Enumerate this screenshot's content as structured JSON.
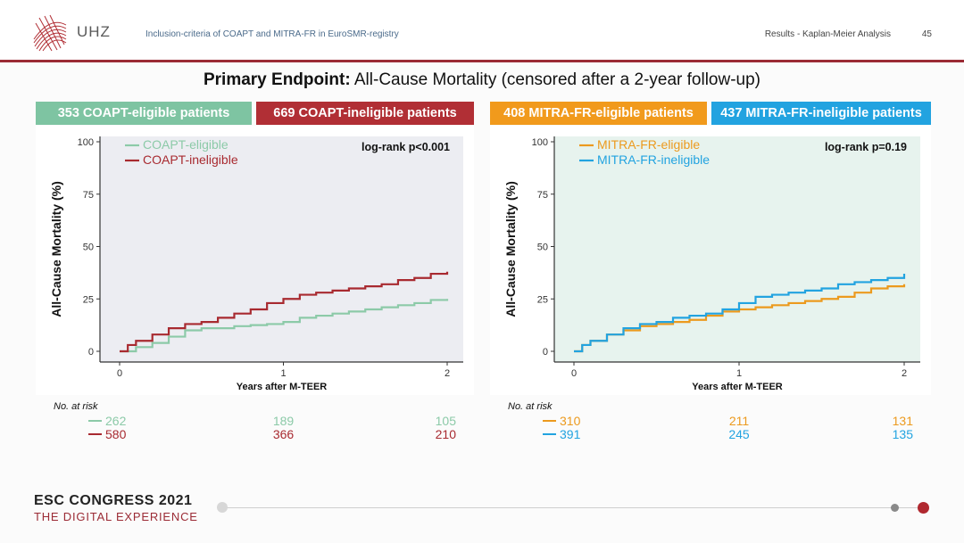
{
  "header": {
    "logo_text": "UHZ",
    "subtitle": "Inclusion-criteria of COAPT and MITRA-FR in EuroSMR-registry",
    "section": "Results - Kaplan-Meier Analysis",
    "page_number": "45"
  },
  "title": {
    "bold": "Primary Endpoint:",
    "rest": " All-Cause Mortality (censored after a 2-year follow-up)"
  },
  "badges": [
    {
      "label": "353 COAPT-eligible patients",
      "color": "#7ec4a2"
    },
    {
      "label": "669 COAPT-ineligible patients",
      "color": "#b12f35"
    },
    {
      "label": "408 MITRA-FR-eligible patients",
      "color": "#f19a1c"
    },
    {
      "label": "437 MITRA-FR-ineligible patients",
      "color": "#22a3e0"
    }
  ],
  "chart_data": [
    {
      "type": "line",
      "plot_bg": "#ecedf2",
      "xlabel": "Years after M-TEER",
      "ylabel": "All-Cause Mortality (%)",
      "xlim": [
        0,
        2
      ],
      "ylim": [
        0,
        100
      ],
      "xticks": [
        "0",
        "1",
        "2"
      ],
      "yticks": [
        "0",
        "25",
        "50",
        "75",
        "100"
      ],
      "annotation": "log-rank p<0.001",
      "legend_position": "top-left",
      "series": [
        {
          "name": "COAPT-eligible",
          "color": "#8ccaa8",
          "x": [
            0,
            0.1,
            0.2,
            0.3,
            0.4,
            0.5,
            0.6,
            0.7,
            0.8,
            0.9,
            1.0,
            1.1,
            1.2,
            1.3,
            1.4,
            1.5,
            1.6,
            1.7,
            1.8,
            1.9,
            2.0
          ],
          "y": [
            0,
            2,
            4,
            7,
            10,
            11,
            11,
            12,
            12.5,
            13,
            14,
            16,
            17,
            18,
            19,
            20,
            21,
            22,
            23,
            24.5,
            25
          ]
        },
        {
          "name": "COAPT-ineligible",
          "color": "#a82a30",
          "x": [
            0,
            0.05,
            0.1,
            0.2,
            0.3,
            0.4,
            0.5,
            0.6,
            0.7,
            0.8,
            0.9,
            1.0,
            1.1,
            1.2,
            1.3,
            1.4,
            1.5,
            1.6,
            1.7,
            1.8,
            1.9,
            2.0
          ],
          "y": [
            0,
            3,
            5,
            8,
            11,
            13,
            14,
            16,
            18,
            20,
            23,
            25,
            27,
            28,
            29,
            30,
            31,
            32,
            34,
            35,
            37,
            38
          ]
        }
      ],
      "risk_table": {
        "label": "No. at risk",
        "rows": [
          {
            "color": "#8ccaa8",
            "values": [
              "262",
              "189",
              "105"
            ]
          },
          {
            "color": "#a82a30",
            "values": [
              "580",
              "366",
              "210"
            ]
          }
        ]
      }
    },
    {
      "type": "line",
      "plot_bg": "#e7f3ee",
      "xlabel": "Years after M-TEER",
      "ylabel": "All-Cause Mortality (%)",
      "xlim": [
        0,
        2
      ],
      "ylim": [
        0,
        100
      ],
      "xticks": [
        "0",
        "1",
        "2"
      ],
      "yticks": [
        "0",
        "25",
        "50",
        "75",
        "100"
      ],
      "annotation": "log-rank p=0.19",
      "legend_position": "top-left",
      "series": [
        {
          "name": "MITRA-FR-eligible",
          "color": "#ec9a1e",
          "x": [
            0,
            0.05,
            0.1,
            0.2,
            0.3,
            0.4,
            0.5,
            0.6,
            0.7,
            0.8,
            0.9,
            1.0,
            1.1,
            1.2,
            1.3,
            1.4,
            1.5,
            1.6,
            1.7,
            1.8,
            1.9,
            2.0
          ],
          "y": [
            0,
            3,
            5,
            8,
            10,
            12,
            13,
            14,
            15,
            17,
            19,
            20,
            21,
            22,
            23,
            24,
            25,
            26,
            28,
            30,
            31,
            32
          ]
        },
        {
          "name": "MITRA-FR-ineligible",
          "color": "#22a3e0",
          "x": [
            0,
            0.05,
            0.1,
            0.2,
            0.3,
            0.4,
            0.5,
            0.6,
            0.7,
            0.8,
            0.9,
            1.0,
            1.1,
            1.2,
            1.3,
            1.4,
            1.5,
            1.6,
            1.7,
            1.8,
            1.9,
            2.0
          ],
          "y": [
            0,
            3,
            5,
            8,
            11,
            13,
            14,
            16,
            17,
            18,
            20,
            23,
            26,
            27,
            28,
            29,
            30,
            32,
            33,
            34,
            35,
            37
          ]
        }
      ],
      "risk_table": {
        "label": "No. at risk",
        "rows": [
          {
            "color": "#ec9a1e",
            "values": [
              "310",
              "211",
              "131"
            ]
          },
          {
            "color": "#22a3e0",
            "values": [
              "391",
              "245",
              "135"
            ]
          }
        ]
      }
    }
  ],
  "footer": {
    "line1": "ESC CONGRESS 2021",
    "line2": "THE DIGITAL EXPERIENCE"
  }
}
